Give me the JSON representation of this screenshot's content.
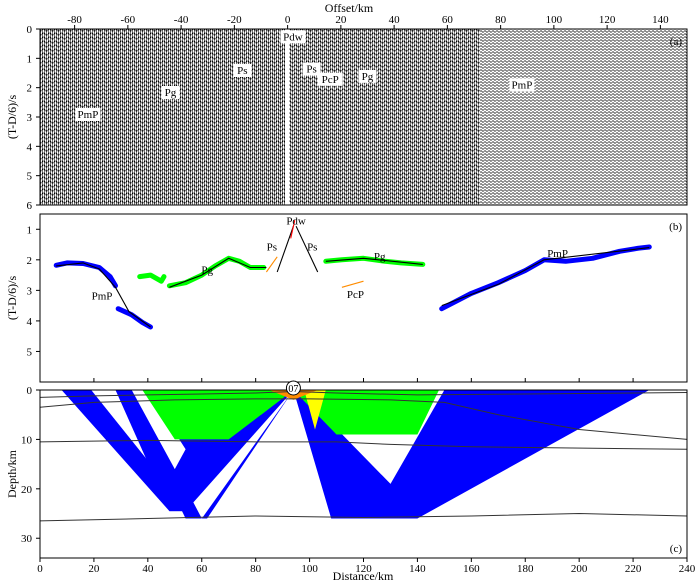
{
  "panel_a": {
    "label": "(a)",
    "xaxis_title": "Offset/km",
    "ylabel": "(T-D/6)/s",
    "xticks": [
      -80,
      -60,
      -40,
      -20,
      0,
      20,
      40,
      60,
      80,
      100,
      120,
      140
    ],
    "xlim": [
      -93,
      150
    ],
    "ylim": [
      0,
      6
    ],
    "yticks": [
      0,
      1,
      2,
      3,
      4,
      5,
      6
    ],
    "phase_labels": [
      {
        "text": "Pdw",
        "x": 2,
        "t": 0.35
      },
      {
        "text": "Ps",
        "x": -17,
        "t": 1.5
      },
      {
        "text": "Ps",
        "x": 9,
        "t": 1.45
      },
      {
        "text": "PcP",
        "x": 16,
        "t": 1.8
      },
      {
        "text": "Pg",
        "x": 30,
        "t": 1.7
      },
      {
        "text": "Pg",
        "x": -44,
        "t": 2.25
      },
      {
        "text": "PmP",
        "x": -75,
        "t": 3.0
      },
      {
        "text": "PmP",
        "x": 88,
        "t": 2.0
      }
    ]
  },
  "panel_b": {
    "label": "(b)",
    "ylabel": "(T-D/6)/s",
    "ylim": [
      0.5,
      6
    ],
    "yticks": [
      1,
      2,
      3,
      4,
      5
    ],
    "phase_labels": [
      {
        "text": "Pdw",
        "x": 95,
        "t": 0.85
      },
      {
        "text": "Ps",
        "x": 86,
        "t": 1.7
      },
      {
        "text": "Ps",
        "x": 101,
        "t": 1.7
      },
      {
        "text": "Pg",
        "x": 62,
        "t": 2.45
      },
      {
        "text": "Pg",
        "x": 126,
        "t": 2.0
      },
      {
        "text": "PcP",
        "x": 117,
        "t": 3.25
      },
      {
        "text": "PmP",
        "x": 23,
        "t": 3.3
      },
      {
        "text": "PmP",
        "x": 192,
        "t": 1.9
      }
    ],
    "picks": [
      {
        "color": "#0000ff",
        "points": [
          [
            6,
            2.18
          ],
          [
            10,
            2.1
          ],
          [
            16,
            2.12
          ],
          [
            22,
            2.25
          ],
          [
            26,
            2.55
          ],
          [
            28,
            2.85
          ]
        ]
      },
      {
        "color": "#0000ff",
        "points": [
          [
            29,
            3.6
          ],
          [
            34,
            3.8
          ],
          [
            38,
            4.05
          ],
          [
            41,
            4.2
          ]
        ]
      },
      {
        "color": "#00ff00",
        "points": [
          [
            37,
            2.55
          ],
          [
            41,
            2.5
          ],
          [
            45,
            2.7
          ],
          [
            46,
            2.55
          ]
        ]
      },
      {
        "color": "#00ff00",
        "points": [
          [
            48,
            2.85
          ],
          [
            54,
            2.75
          ],
          [
            60,
            2.5
          ],
          [
            65,
            2.2
          ],
          [
            70,
            1.95
          ],
          [
            74,
            2.05
          ],
          [
            78,
            2.25
          ],
          [
            83,
            2.25
          ]
        ]
      },
      {
        "color": "#00ff00",
        "points": [
          [
            106,
            2.05
          ],
          [
            112,
            2.0
          ],
          [
            120,
            1.95
          ],
          [
            128,
            2.05
          ],
          [
            134,
            2.1
          ],
          [
            142,
            2.15
          ]
        ]
      },
      {
        "color": "#0000ff",
        "points": [
          [
            149,
            3.6
          ],
          [
            160,
            3.1
          ],
          [
            170,
            2.75
          ],
          [
            180,
            2.35
          ],
          [
            187,
            2.0
          ],
          [
            195,
            2.05
          ],
          [
            205,
            1.95
          ],
          [
            215,
            1.72
          ],
          [
            222,
            1.62
          ],
          [
            226,
            1.58
          ]
        ]
      }
    ],
    "calc": [
      {
        "color": "#000000",
        "points": [
          [
            6,
            2.2
          ],
          [
            16,
            2.1
          ],
          [
            22,
            2.3
          ],
          [
            28,
            2.9
          ],
          [
            33,
            3.7
          ],
          [
            41,
            4.2
          ]
        ]
      },
      {
        "color": "#000000",
        "points": [
          [
            48,
            2.9
          ],
          [
            60,
            2.5
          ],
          [
            70,
            1.95
          ],
          [
            78,
            2.25
          ],
          [
            84,
            2.25
          ]
        ]
      },
      {
        "color": "#000000",
        "points": [
          [
            106,
            2.05
          ],
          [
            120,
            1.95
          ],
          [
            142,
            2.15
          ]
        ]
      },
      {
        "color": "#000000",
        "points": [
          [
            149,
            3.5
          ],
          [
            170,
            2.8
          ],
          [
            187,
            2.0
          ],
          [
            226,
            1.6
          ]
        ]
      },
      {
        "color": "#000000",
        "points": [
          [
            88,
            2.4
          ],
          [
            94,
            0.9
          ]
        ]
      },
      {
        "color": "#000000",
        "points": [
          [
            95,
            0.9
          ],
          [
            103,
            2.4
          ]
        ]
      },
      {
        "color": "#ff8c00",
        "points": [
          [
            84,
            2.4
          ],
          [
            88,
            1.9
          ]
        ]
      },
      {
        "color": "#ff8c00",
        "points": [
          [
            112,
            2.9
          ],
          [
            120,
            2.7
          ]
        ]
      },
      {
        "color": "#ff0000",
        "points": [
          [
            93,
            1.3
          ],
          [
            94.5,
            0.7
          ]
        ]
      }
    ]
  },
  "panel_c": {
    "label": "(c)",
    "ylabel": "Depth/km",
    "xlabel": "Distance/km",
    "station": "07",
    "station_x": 94,
    "xlim": [
      0,
      240
    ],
    "ylim": [
      0,
      34
    ],
    "xticks": [
      0,
      20,
      40,
      60,
      80,
      100,
      120,
      140,
      160,
      180,
      200,
      220,
      240
    ],
    "yticks": [
      0,
      10,
      20,
      30
    ],
    "interfaces": [
      [
        [
          0,
          1.5
        ],
        [
          20,
          1.2
        ],
        [
          40,
          1.0
        ],
        [
          60,
          0.8
        ],
        [
          80,
          0.6
        ],
        [
          94,
          0.3
        ],
        [
          110,
          0.6
        ],
        [
          140,
          1.0
        ],
        [
          180,
          0.8
        ],
        [
          240,
          0.5
        ]
      ],
      [
        [
          0,
          3.5
        ],
        [
          20,
          2.5
        ],
        [
          50,
          2.0
        ],
        [
          80,
          1.8
        ],
        [
          100,
          1.8
        ],
        [
          130,
          2.0
        ],
        [
          150,
          2.5
        ],
        [
          170,
          5.0
        ],
        [
          200,
          8.0
        ],
        [
          240,
          10.0
        ]
      ],
      [
        [
          0,
          10.5
        ],
        [
          40,
          10.2
        ],
        [
          80,
          10.5
        ],
        [
          110,
          10.5
        ],
        [
          130,
          11.0
        ],
        [
          160,
          11.5
        ],
        [
          240,
          12.0
        ]
      ],
      [
        [
          0,
          26.5
        ],
        [
          40,
          26.0
        ],
        [
          80,
          25.5
        ],
        [
          120,
          25.8
        ],
        [
          160,
          25.5
        ],
        [
          200,
          25.0
        ],
        [
          240,
          25.5
        ]
      ]
    ],
    "ray_fans": [
      {
        "color": "#0000ff",
        "polygon": [
          [
            8,
            0
          ],
          [
            19,
            0
          ],
          [
            55,
            24.5
          ],
          [
            48,
            24.5
          ]
        ]
      },
      {
        "color": "#0000ff",
        "polygon": [
          [
            28,
            0
          ],
          [
            36,
            0
          ],
          [
            94,
            0
          ],
          [
            54,
            24.5
          ],
          [
            48,
            24.5
          ]
        ]
      },
      {
        "color": "#0000ff",
        "polygon": [
          [
            31,
            0
          ],
          [
            35,
            0
          ],
          [
            60,
            26
          ],
          [
            54,
            26
          ]
        ]
      },
      {
        "color": "#ffffff",
        "polygon": [
          [
            34,
            0
          ],
          [
            40,
            0
          ],
          [
            54,
            12
          ],
          [
            50,
            16
          ]
        ]
      },
      {
        "color": "#0000ff",
        "polygon": [
          [
            60,
            26
          ],
          [
            94,
            0
          ],
          [
            62,
            26
          ]
        ]
      },
      {
        "color": "#0000ff",
        "polygon": [
          [
            94,
            0
          ],
          [
            108,
            26
          ],
          [
            140,
            26
          ],
          [
            226,
            0
          ],
          [
            150,
            0
          ],
          [
            130,
            19
          ],
          [
            96,
            0
          ]
        ]
      },
      {
        "color": "#00ff00",
        "polygon": [
          [
            38,
            0
          ],
          [
            50,
            0
          ],
          [
            94,
            0
          ],
          [
            70,
            10
          ],
          [
            50,
            10
          ]
        ]
      },
      {
        "color": "#00ff00",
        "polygon": [
          [
            58,
            0
          ],
          [
            94,
            0
          ],
          [
            82,
            5
          ],
          [
            70,
            6
          ]
        ]
      },
      {
        "color": "#00ff00",
        "polygon": [
          [
            94,
            0
          ],
          [
            148,
            0
          ],
          [
            140,
            9
          ],
          [
            110,
            9
          ]
        ]
      },
      {
        "color": "#ffff00",
        "polygon": [
          [
            98,
            0
          ],
          [
            106,
            0
          ],
          [
            102,
            8
          ]
        ]
      },
      {
        "color": "#ff8c00",
        "polygon": [
          [
            85,
            0
          ],
          [
            103,
            0
          ],
          [
            94,
            2
          ]
        ]
      }
    ]
  }
}
